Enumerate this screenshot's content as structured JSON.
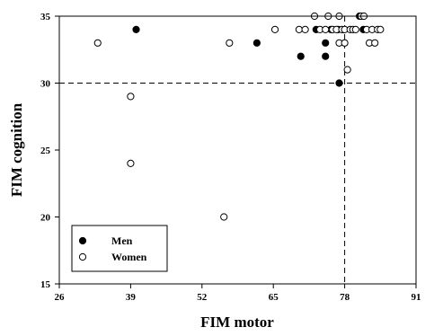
{
  "chart_data": {
    "type": "scatter",
    "xlabel": "FIM motor",
    "ylabel": "FIM cognition",
    "xlim": [
      26,
      91
    ],
    "ylim": [
      15,
      35
    ],
    "x_ticks": [
      26,
      39,
      52,
      65,
      78,
      91
    ],
    "y_ticks": [
      15,
      20,
      25,
      30,
      35
    ],
    "grid": false,
    "legend_position": "bottom-left",
    "reference_lines": [
      {
        "orientation": "horizontal",
        "value": 30,
        "style": "dashed"
      },
      {
        "orientation": "vertical",
        "value": 78,
        "style": "dashed"
      }
    ],
    "series": [
      {
        "name": "Men",
        "marker": "filled-circle",
        "color": "#000000",
        "points": [
          {
            "x": 40,
            "y": 34
          },
          {
            "x": 62,
            "y": 33
          },
          {
            "x": 70,
            "y": 32
          },
          {
            "x": 72.8,
            "y": 34
          },
          {
            "x": 74.5,
            "y": 33
          },
          {
            "x": 74.5,
            "y": 32
          },
          {
            "x": 75.5,
            "y": 34
          },
          {
            "x": 76.8,
            "y": 34
          },
          {
            "x": 77,
            "y": 30
          },
          {
            "x": 80.7,
            "y": 35
          },
          {
            "x": 81.4,
            "y": 34
          }
        ]
      },
      {
        "name": "Women",
        "marker": "open-circle",
        "color": "#000000",
        "points": [
          {
            "x": 33,
            "y": 33
          },
          {
            "x": 39,
            "y": 29
          },
          {
            "x": 39,
            "y": 24
          },
          {
            "x": 56,
            "y": 20
          },
          {
            "x": 57,
            "y": 33
          },
          {
            "x": 65.3,
            "y": 34
          },
          {
            "x": 69.7,
            "y": 34
          },
          {
            "x": 70.8,
            "y": 34
          },
          {
            "x": 72.5,
            "y": 35
          },
          {
            "x": 73.5,
            "y": 34
          },
          {
            "x": 74.5,
            "y": 34
          },
          {
            "x": 75,
            "y": 35
          },
          {
            "x": 75.8,
            "y": 34
          },
          {
            "x": 76.5,
            "y": 34
          },
          {
            "x": 77,
            "y": 35
          },
          {
            "x": 77,
            "y": 33
          },
          {
            "x": 77.5,
            "y": 34
          },
          {
            "x": 78,
            "y": 34
          },
          {
            "x": 78,
            "y": 33
          },
          {
            "x": 78.5,
            "y": 31
          },
          {
            "x": 79,
            "y": 34
          },
          {
            "x": 79.5,
            "y": 34
          },
          {
            "x": 80,
            "y": 34
          },
          {
            "x": 81,
            "y": 35
          },
          {
            "x": 81.5,
            "y": 35
          },
          {
            "x": 82,
            "y": 34
          },
          {
            "x": 82.5,
            "y": 33
          },
          {
            "x": 83,
            "y": 34
          },
          {
            "x": 83.5,
            "y": 33
          },
          {
            "x": 84,
            "y": 34
          },
          {
            "x": 84.5,
            "y": 34
          }
        ]
      }
    ]
  }
}
